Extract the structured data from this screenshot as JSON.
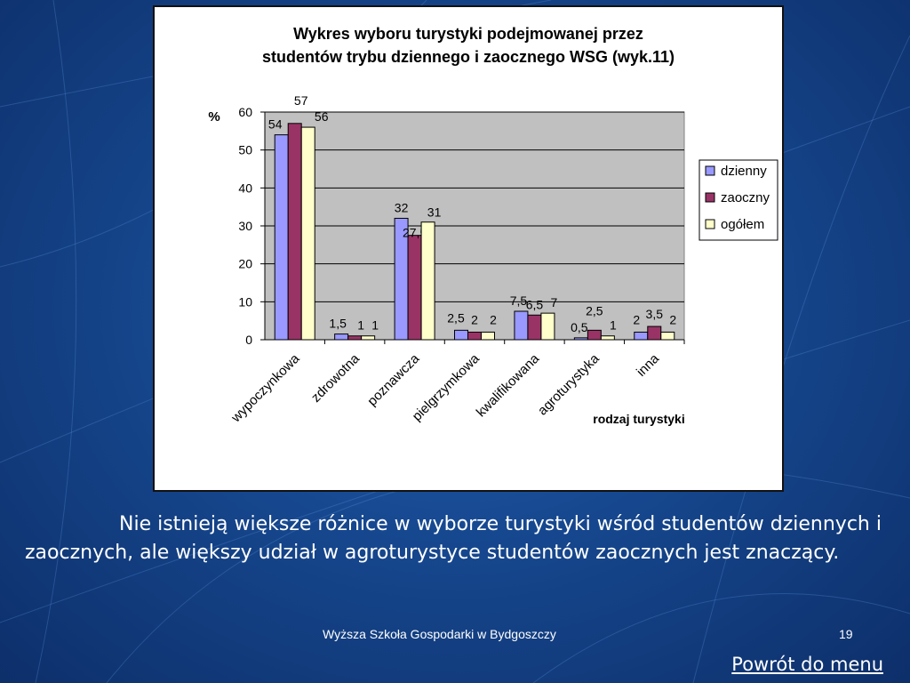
{
  "chart_data": {
    "type": "bar",
    "title_lines": [
      "Wykres wyboru turystyki podejmowanej przez",
      "studentów trybu dziennego i zaocznego WSG (wyk.11)"
    ],
    "ylabel": "%",
    "xlabel": "rodzaj turystyki",
    "ylim": [
      0,
      60
    ],
    "yticks": [
      0,
      10,
      20,
      30,
      40,
      50,
      60
    ],
    "grid": true,
    "legend_position": "right",
    "categories": [
      "wypoczynkowa",
      "zdrowotna",
      "poznawcza",
      "pielgrzymkowa",
      "kwalifikowana",
      "agroturystyka",
      "inna"
    ],
    "series": [
      {
        "name": "dzienny",
        "color": "#9999ff",
        "values": [
          54,
          1.5,
          32,
          2.5,
          7.5,
          0.5,
          2
        ],
        "labels": [
          "54",
          "1,5",
          "32",
          "2,5",
          "7,5",
          "0,5",
          "2"
        ]
      },
      {
        "name": "zaoczny",
        "color": "#993366",
        "values": [
          57,
          1,
          27.5,
          2,
          6.5,
          2.5,
          3.5
        ],
        "labels": [
          "57",
          "1",
          "27,5",
          "2",
          "6,5",
          "2,5",
          "3,5"
        ]
      },
      {
        "name": "ogółem",
        "color": "#ffffcc",
        "values": [
          56,
          1,
          31,
          2,
          7,
          1,
          2
        ],
        "labels": [
          "56",
          "1",
          "31",
          "2",
          "7",
          "1",
          "2"
        ]
      }
    ],
    "plot_background": "#c0c0c0"
  },
  "caption": "Nie istnieją większe różnice w wyborze turystyki wśród studentów dziennych i zaocznych, ale większy udział w agroturystyce studentów zaocznych jest znaczący.",
  "footer": {
    "institution": "Wyższa Szkoła Gospodarki w Bydgoszczy",
    "page_number": "19"
  },
  "back_link": "Powrót do menu"
}
